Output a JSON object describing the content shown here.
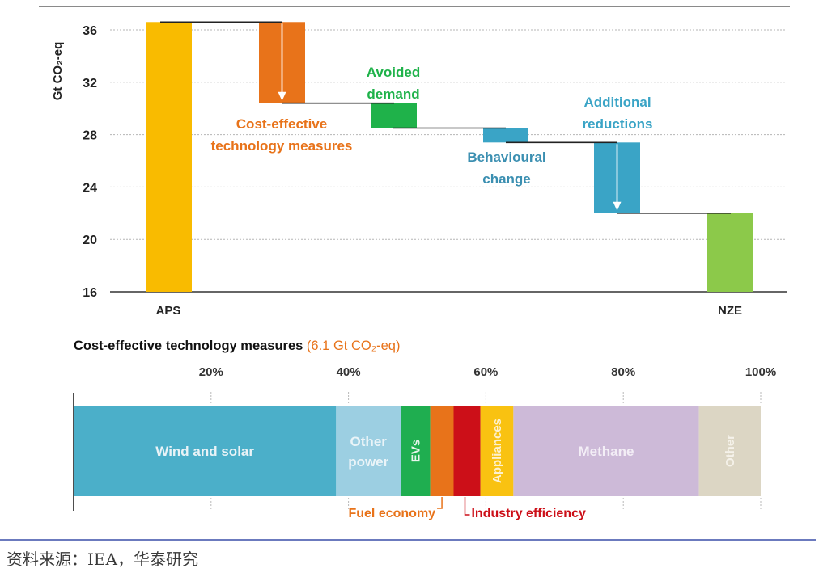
{
  "colors": {
    "orange": "#e8731a",
    "green": "#1fb24a",
    "teal": "#3aa4c6",
    "yellow": "#f9bb00",
    "lime": "#8cc94a",
    "dark_teal": "#3b8fb1",
    "red": "#cc0f18",
    "rule": "#3a4ea8"
  },
  "chart_data": [
    {
      "type": "bar",
      "subtype": "waterfall",
      "ylabel": "Gt CO₂-eq",
      "ylim": [
        16,
        36
      ],
      "yticks": [
        16,
        20,
        24,
        28,
        32,
        36
      ],
      "grid": true,
      "categories": [
        "APS",
        "Cost-effective technology measures",
        "Avoided demand",
        "Behavioural change",
        "Additional reductions",
        "NZE"
      ],
      "category_tick_labels": [
        "APS",
        "",
        "",
        "",
        "",
        "NZE"
      ],
      "bars": [
        {
          "label": "APS",
          "start": 16,
          "end": 36.6,
          "color": "#f9bb00",
          "kind": "total"
        },
        {
          "label": "Cost-effective technology measures",
          "start": 36.6,
          "end": 30.4,
          "color": "#e8731a",
          "kind": "step",
          "arrow": true
        },
        {
          "label": "Avoided demand",
          "start": 30.4,
          "end": 28.5,
          "color": "#1fb24a",
          "kind": "step"
        },
        {
          "label": "Behavioural change",
          "start": 28.5,
          "end": 27.4,
          "color": "#3aa4c6",
          "kind": "step"
        },
        {
          "label": "Additional reductions",
          "start": 27.4,
          "end": 22.0,
          "color": "#3aa4c6",
          "kind": "step",
          "arrow": true
        },
        {
          "label": "NZE",
          "start": 16,
          "end": 22.0,
          "color": "#8cc94a",
          "kind": "total"
        }
      ],
      "annotations": [
        {
          "lines": [
            "Cost-effective",
            "technology measures"
          ],
          "color": "#e8731a"
        },
        {
          "lines": [
            "Avoided",
            "demand"
          ],
          "color": "#1fb24a"
        },
        {
          "lines": [
            "Behavioural",
            "change"
          ],
          "color": "#3b8fb1"
        },
        {
          "lines": [
            "Additional",
            "reductions"
          ],
          "color": "#3aa4c6"
        }
      ]
    },
    {
      "type": "bar",
      "subtype": "stacked-percent",
      "title": "Cost-effective technology measures",
      "title_suffix": "(6.1 Gt CO₂-eq)",
      "xlim": [
        0,
        100
      ],
      "xticks": [
        20,
        40,
        60,
        80,
        100
      ],
      "xtick_labels": [
        "20%",
        "40%",
        "60%",
        "80%",
        "100%"
      ],
      "segments": [
        {
          "name": "Wind and solar",
          "value": 38.2,
          "color": "#4bafc9",
          "text_color": "#e9f3f7",
          "label_mode": "inside"
        },
        {
          "name": "Other power",
          "inside_lines": [
            "Other",
            "power"
          ],
          "value": 9.4,
          "color": "#9ccfe2",
          "text_color": "#eaf4f8",
          "label_mode": "inside"
        },
        {
          "name": "EVs",
          "value": 4.3,
          "color": "#1fae50",
          "text_color": "#e8f5ec",
          "label_mode": "vertical"
        },
        {
          "name": "Fuel economy",
          "value": 3.4,
          "color": "#e8731a",
          "label_mode": "callout",
          "callout_color": "#e8731a"
        },
        {
          "name": "Industry efficiency",
          "value": 3.9,
          "color": "#cc0f18",
          "label_mode": "callout",
          "callout_color": "#cc0f18"
        },
        {
          "name": "Appliances",
          "value": 4.8,
          "color": "#f9c211",
          "text_color": "#fdf1cf",
          "label_mode": "vertical"
        },
        {
          "name": "Methane",
          "value": 27.0,
          "color": "#cdbad8",
          "text_color": "#f3eef6",
          "label_mode": "inside"
        },
        {
          "name": "Other",
          "value": 9.0,
          "color": "#dcd6c4",
          "text_color": "#f5f2ea",
          "label_mode": "vertical"
        }
      ]
    }
  ],
  "source_text": "资料来源：IEA，华泰研究"
}
